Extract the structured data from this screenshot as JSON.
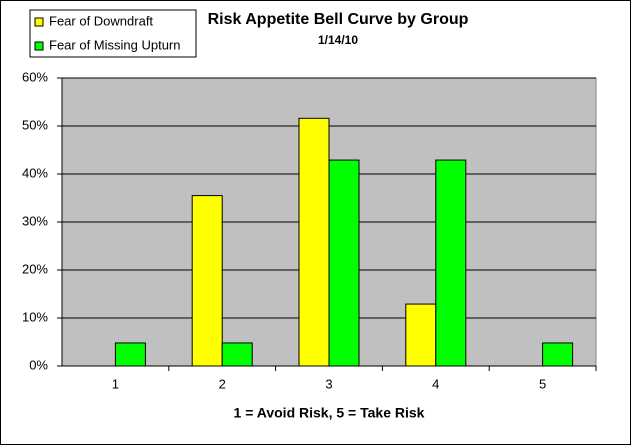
{
  "chart_data": {
    "type": "bar",
    "title": "Risk Appetite Bell Curve by Group",
    "subtitle": "1/14/10",
    "x_label": "1 = Avoid Risk, 5 = Take Risk",
    "categories": [
      "1",
      "2",
      "3",
      "4",
      "5"
    ],
    "series": [
      {
        "name": "Fear of Downdraft",
        "color": "#ffff00",
        "values": [
          0,
          35.5,
          51.6,
          12.9,
          0
        ]
      },
      {
        "name": "Fear of Missing Upturn",
        "color": "#00ff00",
        "values": [
          4.8,
          4.8,
          42.9,
          42.9,
          4.8
        ]
      }
    ],
    "ylim": [
      0,
      60
    ],
    "yticks": [
      {
        "value": 0,
        "label": "0%"
      },
      {
        "value": 10,
        "label": "10%"
      },
      {
        "value": 20,
        "label": "20%"
      },
      {
        "value": 30,
        "label": "30%"
      },
      {
        "value": 40,
        "label": "40%"
      },
      {
        "value": 50,
        "label": "50%"
      },
      {
        "value": 60,
        "label": "60%"
      }
    ],
    "grid": true,
    "legend": "top-left",
    "plot_background": "#c0c0c0"
  }
}
